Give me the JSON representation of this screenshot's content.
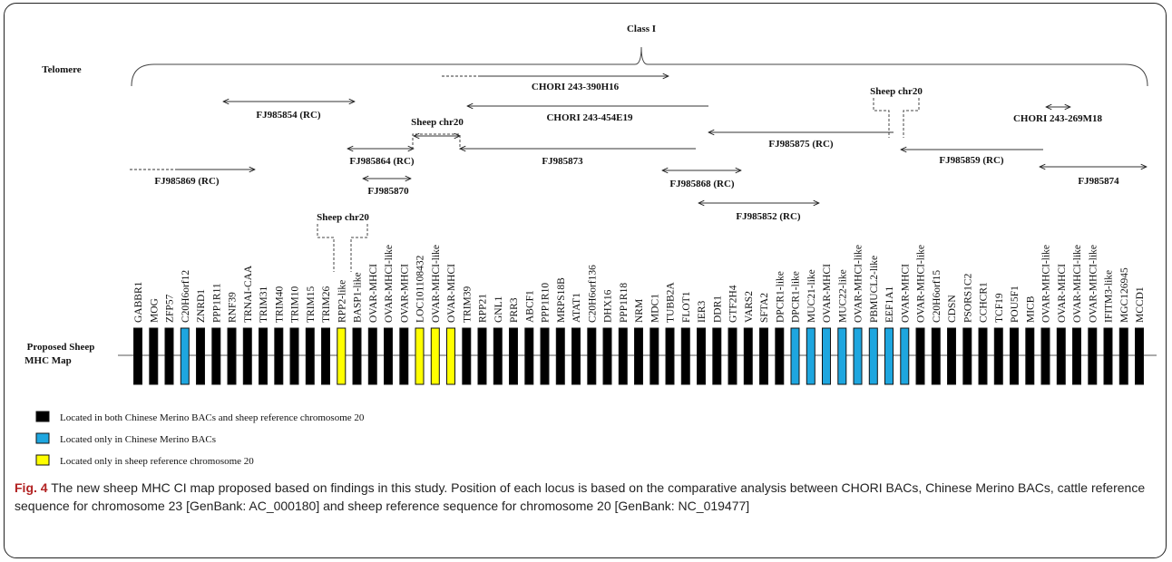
{
  "header": {
    "class_label": "Class I",
    "telomere_label": "Telomere"
  },
  "map_label": [
    "Proposed Sheep",
    "MHC Map"
  ],
  "clones": [
    {
      "label": "CHORI 243-390H16"
    },
    {
      "label": "CHORI 243-454E19"
    },
    {
      "label": "FJ985854 (RC)"
    },
    {
      "label": "Sheep chr20"
    },
    {
      "label": "FJ985864 (RC)"
    },
    {
      "label": "FJ985870"
    },
    {
      "label": "FJ985869 (RC)"
    },
    {
      "label": "FJ985873"
    },
    {
      "label": "FJ985868 (RC)"
    },
    {
      "label": "FJ985852 (RC)"
    },
    {
      "label": "FJ985875 (RC)"
    },
    {
      "label": "Sheep chr20"
    },
    {
      "label": "FJ985859 (RC)"
    },
    {
      "label": "CHORI 243-269M18"
    },
    {
      "label": "FJ985874"
    },
    {
      "label": "Sheep chr20"
    }
  ],
  "genes": [
    {
      "name": "GABBR1",
      "color": "black"
    },
    {
      "name": "MOG",
      "color": "black"
    },
    {
      "name": "ZFP57",
      "color": "black"
    },
    {
      "name": "C20H6orf12",
      "color": "blue"
    },
    {
      "name": "ZNRD1",
      "color": "black"
    },
    {
      "name": "PPP1R11",
      "color": "black"
    },
    {
      "name": "RNF39",
      "color": "black"
    },
    {
      "name": "TRNAI-CAA",
      "color": "black"
    },
    {
      "name": "TRIM31",
      "color": "black"
    },
    {
      "name": "TRIM40",
      "color": "black"
    },
    {
      "name": "TRIM10",
      "color": "black"
    },
    {
      "name": "TRIM15",
      "color": "black"
    },
    {
      "name": "TRIM26",
      "color": "black"
    },
    {
      "name": "RPP2-like",
      "color": "yellow"
    },
    {
      "name": "BASP1-like",
      "color": "black"
    },
    {
      "name": "OVAR-MHCI",
      "color": "black"
    },
    {
      "name": "OVAR-MHCI-like",
      "color": "black"
    },
    {
      "name": "OVAR-MHCI",
      "color": "black"
    },
    {
      "name": "LOC101108432",
      "color": "yellow"
    },
    {
      "name": "OVAR-MHCI-like",
      "color": "yellow"
    },
    {
      "name": "OVAR-MHCI",
      "color": "yellow"
    },
    {
      "name": "TRIM39",
      "color": "black"
    },
    {
      "name": "RPP21",
      "color": "black"
    },
    {
      "name": "GNL1",
      "color": "black"
    },
    {
      "name": "PRR3",
      "color": "black"
    },
    {
      "name": "ABCF1",
      "color": "black"
    },
    {
      "name": "PPP1R10",
      "color": "black"
    },
    {
      "name": "MRPS18B",
      "color": "black"
    },
    {
      "name": "ATAT1",
      "color": "black"
    },
    {
      "name": "C20H6orf136",
      "color": "black"
    },
    {
      "name": "DHX16",
      "color": "black"
    },
    {
      "name": "PPP1R18",
      "color": "black"
    },
    {
      "name": "NRM",
      "color": "black"
    },
    {
      "name": "MDC1",
      "color": "black"
    },
    {
      "name": "TUBB2A",
      "color": "black"
    },
    {
      "name": "FLOT1",
      "color": "black"
    },
    {
      "name": "IER3",
      "color": "black"
    },
    {
      "name": "DDR1",
      "color": "black"
    },
    {
      "name": "GTF2H4",
      "color": "black"
    },
    {
      "name": "VARS2",
      "color": "black"
    },
    {
      "name": "SFTA2",
      "color": "black"
    },
    {
      "name": "DPCR1-like",
      "color": "black"
    },
    {
      "name": "DPCR1-like",
      "color": "blue"
    },
    {
      "name": "MUC21-like",
      "color": "blue"
    },
    {
      "name": "OVAR-MHCI",
      "color": "blue"
    },
    {
      "name": "MUC22-like",
      "color": "blue"
    },
    {
      "name": "OVAR-MHCI-like",
      "color": "blue"
    },
    {
      "name": "PBMUCL2-like",
      "color": "blue"
    },
    {
      "name": "EEF1A1",
      "color": "blue"
    },
    {
      "name": "OVAR-MHCI",
      "color": "blue"
    },
    {
      "name": "OVAR-MHCI-like",
      "color": "black"
    },
    {
      "name": "C20H6orf15",
      "color": "black"
    },
    {
      "name": "CDSN",
      "color": "black"
    },
    {
      "name": "PSORS1C2",
      "color": "black"
    },
    {
      "name": "CCHCR1",
      "color": "black"
    },
    {
      "name": "TCF19",
      "color": "black"
    },
    {
      "name": "POU5F1",
      "color": "black"
    },
    {
      "name": "MICB",
      "color": "black"
    },
    {
      "name": "OVAR-MHCI-like",
      "color": "black"
    },
    {
      "name": "OVAR-MHCI",
      "color": "black"
    },
    {
      "name": "OVAR-MHCI-like",
      "color": "black"
    },
    {
      "name": "OVAR-MHCI-like",
      "color": "black"
    },
    {
      "name": "IFITM3-like",
      "color": "black"
    },
    {
      "name": "MGC126945",
      "color": "black"
    },
    {
      "name": "MCCD1",
      "color": "black"
    }
  ],
  "legend": [
    {
      "color": "black",
      "text": "Located in both Chinese Merino BACs and sheep reference chromosome 20"
    },
    {
      "color": "blue",
      "text": "Located only in Chinese Merino BACs"
    },
    {
      "color": "yellow",
      "text": "Located only in sheep reference chromosome 20"
    }
  ],
  "colors": {
    "black": "#000000",
    "blue": "#1ea6df",
    "yellow": "#ffff00",
    "caption_accent": "#b22222"
  },
  "caption": {
    "fig_label": "Fig. 4",
    "text": "The new sheep MHC CI map proposed based on findings in this study. Position of each locus is based on the comparative analysis between CHORI BACs, Chinese Merino BACs, cattle reference sequence for chromosome 23 [GenBank: AC_000180] and sheep reference sequence for chromosome 20 [GenBank: NC_019477]"
  }
}
